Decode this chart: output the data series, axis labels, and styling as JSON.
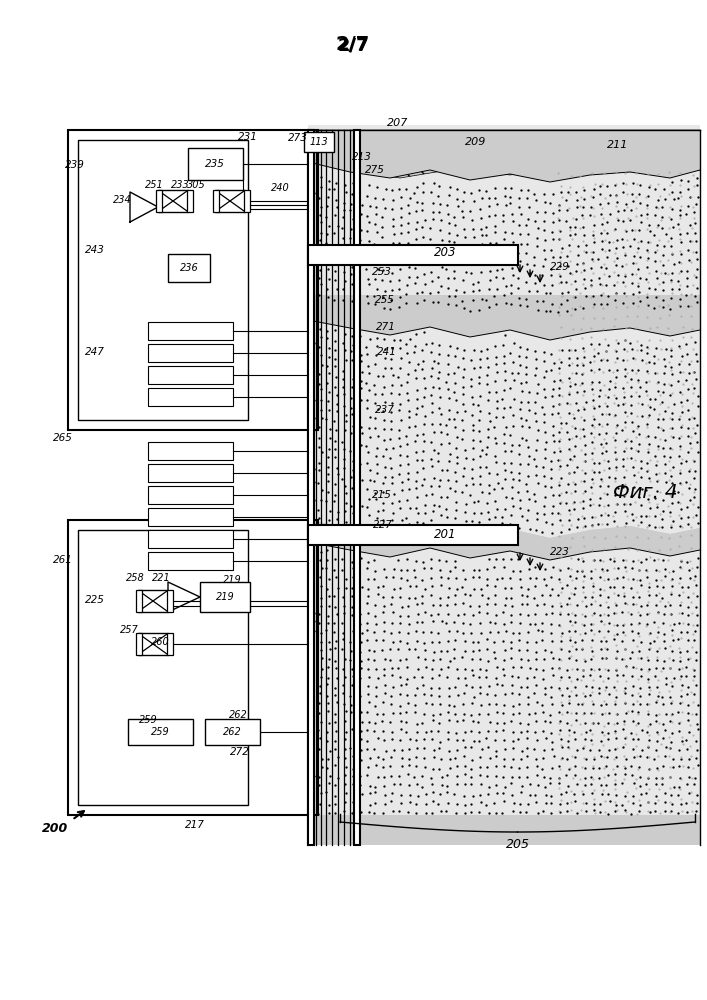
{
  "title": "2/7",
  "fig_label": "Фиг. 4",
  "bg_color": "#ffffff",
  "line_color": "#000000"
}
